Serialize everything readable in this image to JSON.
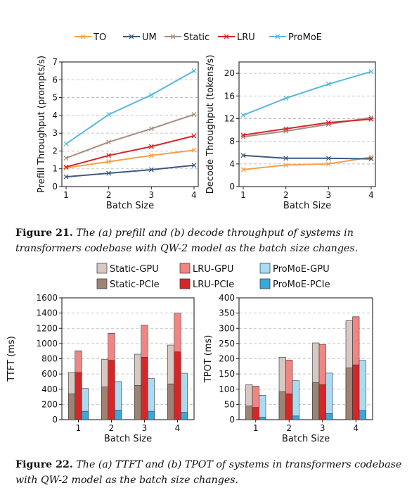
{
  "figures": [
    {
      "label": "Figure 21.",
      "caption": "The (a) prefill and (b) decode throughput of systems in transformers codebase with QW-2 model as the batch size changes."
    },
    {
      "label": "Figure 22.",
      "caption": "The (a) TTFT and (b) TPOT of systems in transformers codebase with QW-2 model as the batch size changes."
    }
  ],
  "colors": {
    "TO": "#f5a04a",
    "UM": "#3d5a80",
    "Static": "#a98b7f",
    "LRU": "#d62728",
    "ProMoE": "#58b8e0",
    "Static-GPU": "#d8c8c2",
    "Static-PCIe": "#a08273",
    "LRU-GPU": "#f08583",
    "LRU-PCIe": "#d62728",
    "ProMoE-GPU": "#a9dcf2",
    "ProMoE-PCIe": "#3aa8dc"
  },
  "chart_data": [
    {
      "type": "line",
      "title": "",
      "xlabel": "Batch Size",
      "ylabel": "Prefill Throughput (prompts/s)",
      "x": [
        1,
        2,
        3,
        4
      ],
      "ylim": [
        0,
        7
      ],
      "yticks": [
        0,
        1,
        2,
        3,
        4,
        5,
        6,
        7
      ],
      "grid": true,
      "legend": "top",
      "series": [
        {
          "name": "TO",
          "values": [
            1.05,
            1.4,
            1.75,
            2.05
          ]
        },
        {
          "name": "UM",
          "values": [
            0.55,
            0.75,
            0.95,
            1.2
          ]
        },
        {
          "name": "Static",
          "values": [
            1.6,
            2.5,
            3.25,
            4.05
          ]
        },
        {
          "name": "LRU",
          "values": [
            1.1,
            1.75,
            2.25,
            2.85
          ]
        },
        {
          "name": "ProMoE",
          "values": [
            2.4,
            4.05,
            5.15,
            6.5
          ]
        }
      ]
    },
    {
      "type": "line",
      "title": "",
      "xlabel": "Batch Size",
      "ylabel": "Decode Throughput (tokens/s)",
      "x": [
        1,
        2,
        3,
        4
      ],
      "ylim": [
        0,
        22
      ],
      "yticks": [
        0,
        4,
        8,
        12,
        16,
        20
      ],
      "grid": true,
      "series": [
        {
          "name": "TO",
          "values": [
            3.0,
            3.8,
            4.0,
            5.2
          ]
        },
        {
          "name": "UM",
          "values": [
            5.5,
            5.0,
            5.0,
            4.9
          ]
        },
        {
          "name": "Static",
          "values": [
            8.8,
            9.8,
            11.0,
            12.2
          ]
        },
        {
          "name": "LRU",
          "values": [
            9.1,
            10.2,
            11.3,
            11.9
          ]
        },
        {
          "name": "ProMoE",
          "values": [
            12.6,
            15.6,
            18.1,
            20.3
          ]
        }
      ]
    },
    {
      "type": "bar",
      "title": "",
      "xlabel": "Batch Size",
      "ylabel": "TTFT (ms)",
      "categories": [
        "1",
        "2",
        "3",
        "4"
      ],
      "ylim": [
        0,
        1600
      ],
      "yticks": [
        0,
        200,
        400,
        600,
        800,
        1000,
        1200,
        1400,
        1600
      ],
      "grid": true,
      "legend": "top",
      "series": [
        {
          "name": "Static-GPU",
          "values": [
            620,
            790,
            860,
            980
          ]
        },
        {
          "name": "Static-PCIe",
          "values": [
            340,
            430,
            450,
            470
          ]
        },
        {
          "name": "LRU-GPU",
          "values": [
            905,
            1135,
            1240,
            1400
          ]
        },
        {
          "name": "LRU-PCIe",
          "values": [
            620,
            780,
            820,
            890
          ]
        },
        {
          "name": "ProMoE-GPU",
          "values": [
            410,
            500,
            540,
            610
          ]
        },
        {
          "name": "ProMoE-PCIe",
          "values": [
            110,
            125,
            110,
            95
          ]
        }
      ]
    },
    {
      "type": "bar",
      "title": "",
      "xlabel": "Batch Size",
      "ylabel": "TPOT (ms)",
      "categories": [
        "1",
        "2",
        "3",
        "4"
      ],
      "ylim": [
        0,
        400
      ],
      "yticks": [
        0,
        50,
        100,
        150,
        200,
        250,
        300,
        350,
        400
      ],
      "grid": true,
      "series": [
        {
          "name": "Static-GPU",
          "values": [
            115,
            205,
            252,
            325
          ]
        },
        {
          "name": "Static-PCIe",
          "values": [
            45,
            92,
            122,
            170
          ]
        },
        {
          "name": "LRU-GPU",
          "values": [
            110,
            196,
            247,
            338
          ]
        },
        {
          "name": "LRU-PCIe",
          "values": [
            40,
            85,
            115,
            180
          ]
        },
        {
          "name": "ProMoE-GPU",
          "values": [
            80,
            128,
            153,
            195
          ]
        },
        {
          "name": "ProMoE-PCIe",
          "values": [
            8,
            12,
            20,
            30
          ]
        }
      ]
    }
  ]
}
